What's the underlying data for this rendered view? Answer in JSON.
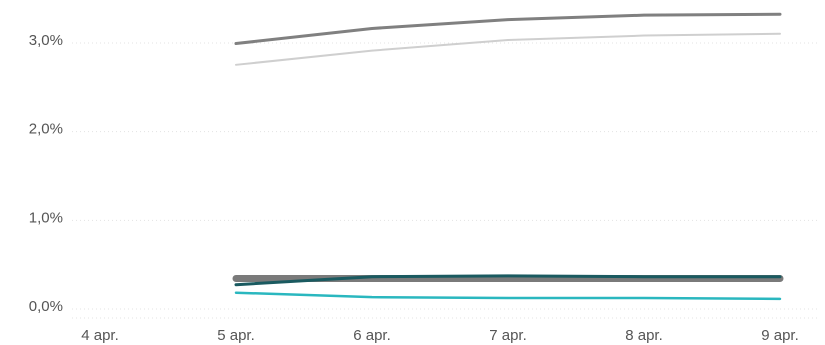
{
  "chart_data": {
    "type": "line",
    "title": "",
    "xlabel": "",
    "ylabel": "",
    "x": [
      "4 apr.",
      "5 apr.",
      "6 apr.",
      "7 apr.",
      "8 apr.",
      "9 apr."
    ],
    "yticks": [
      {
        "value": 0,
        "label": "0,0%"
      },
      {
        "value": 1,
        "label": "1,0%"
      },
      {
        "value": 2,
        "label": "2,0%"
      },
      {
        "value": 3,
        "label": "3,0%"
      }
    ],
    "ylim": [
      0,
      3.3
    ],
    "grid": "horizontal dotted",
    "legend": "none",
    "series": [
      {
        "color": "#cfcfcf",
        "values": [
          null,
          2.72,
          2.88,
          3.0,
          3.05,
          3.07
        ]
      },
      {
        "color": "#808080",
        "values": [
          null,
          2.96,
          3.13,
          3.23,
          3.28,
          3.29
        ]
      },
      {
        "color": "#7a7a7a",
        "values": [
          null,
          0.31,
          0.31,
          0.31,
          0.31,
          0.31
        ]
      },
      {
        "color": "#1a5a60",
        "values": [
          null,
          0.24,
          0.33,
          0.34,
          0.33,
          0.33
        ]
      },
      {
        "color": "#2ab7bf",
        "values": [
          null,
          0.15,
          0.1,
          0.09,
          0.09,
          0.08
        ]
      }
    ],
    "line_widths": [
      2,
      3,
      7,
      3,
      2.5
    ]
  }
}
